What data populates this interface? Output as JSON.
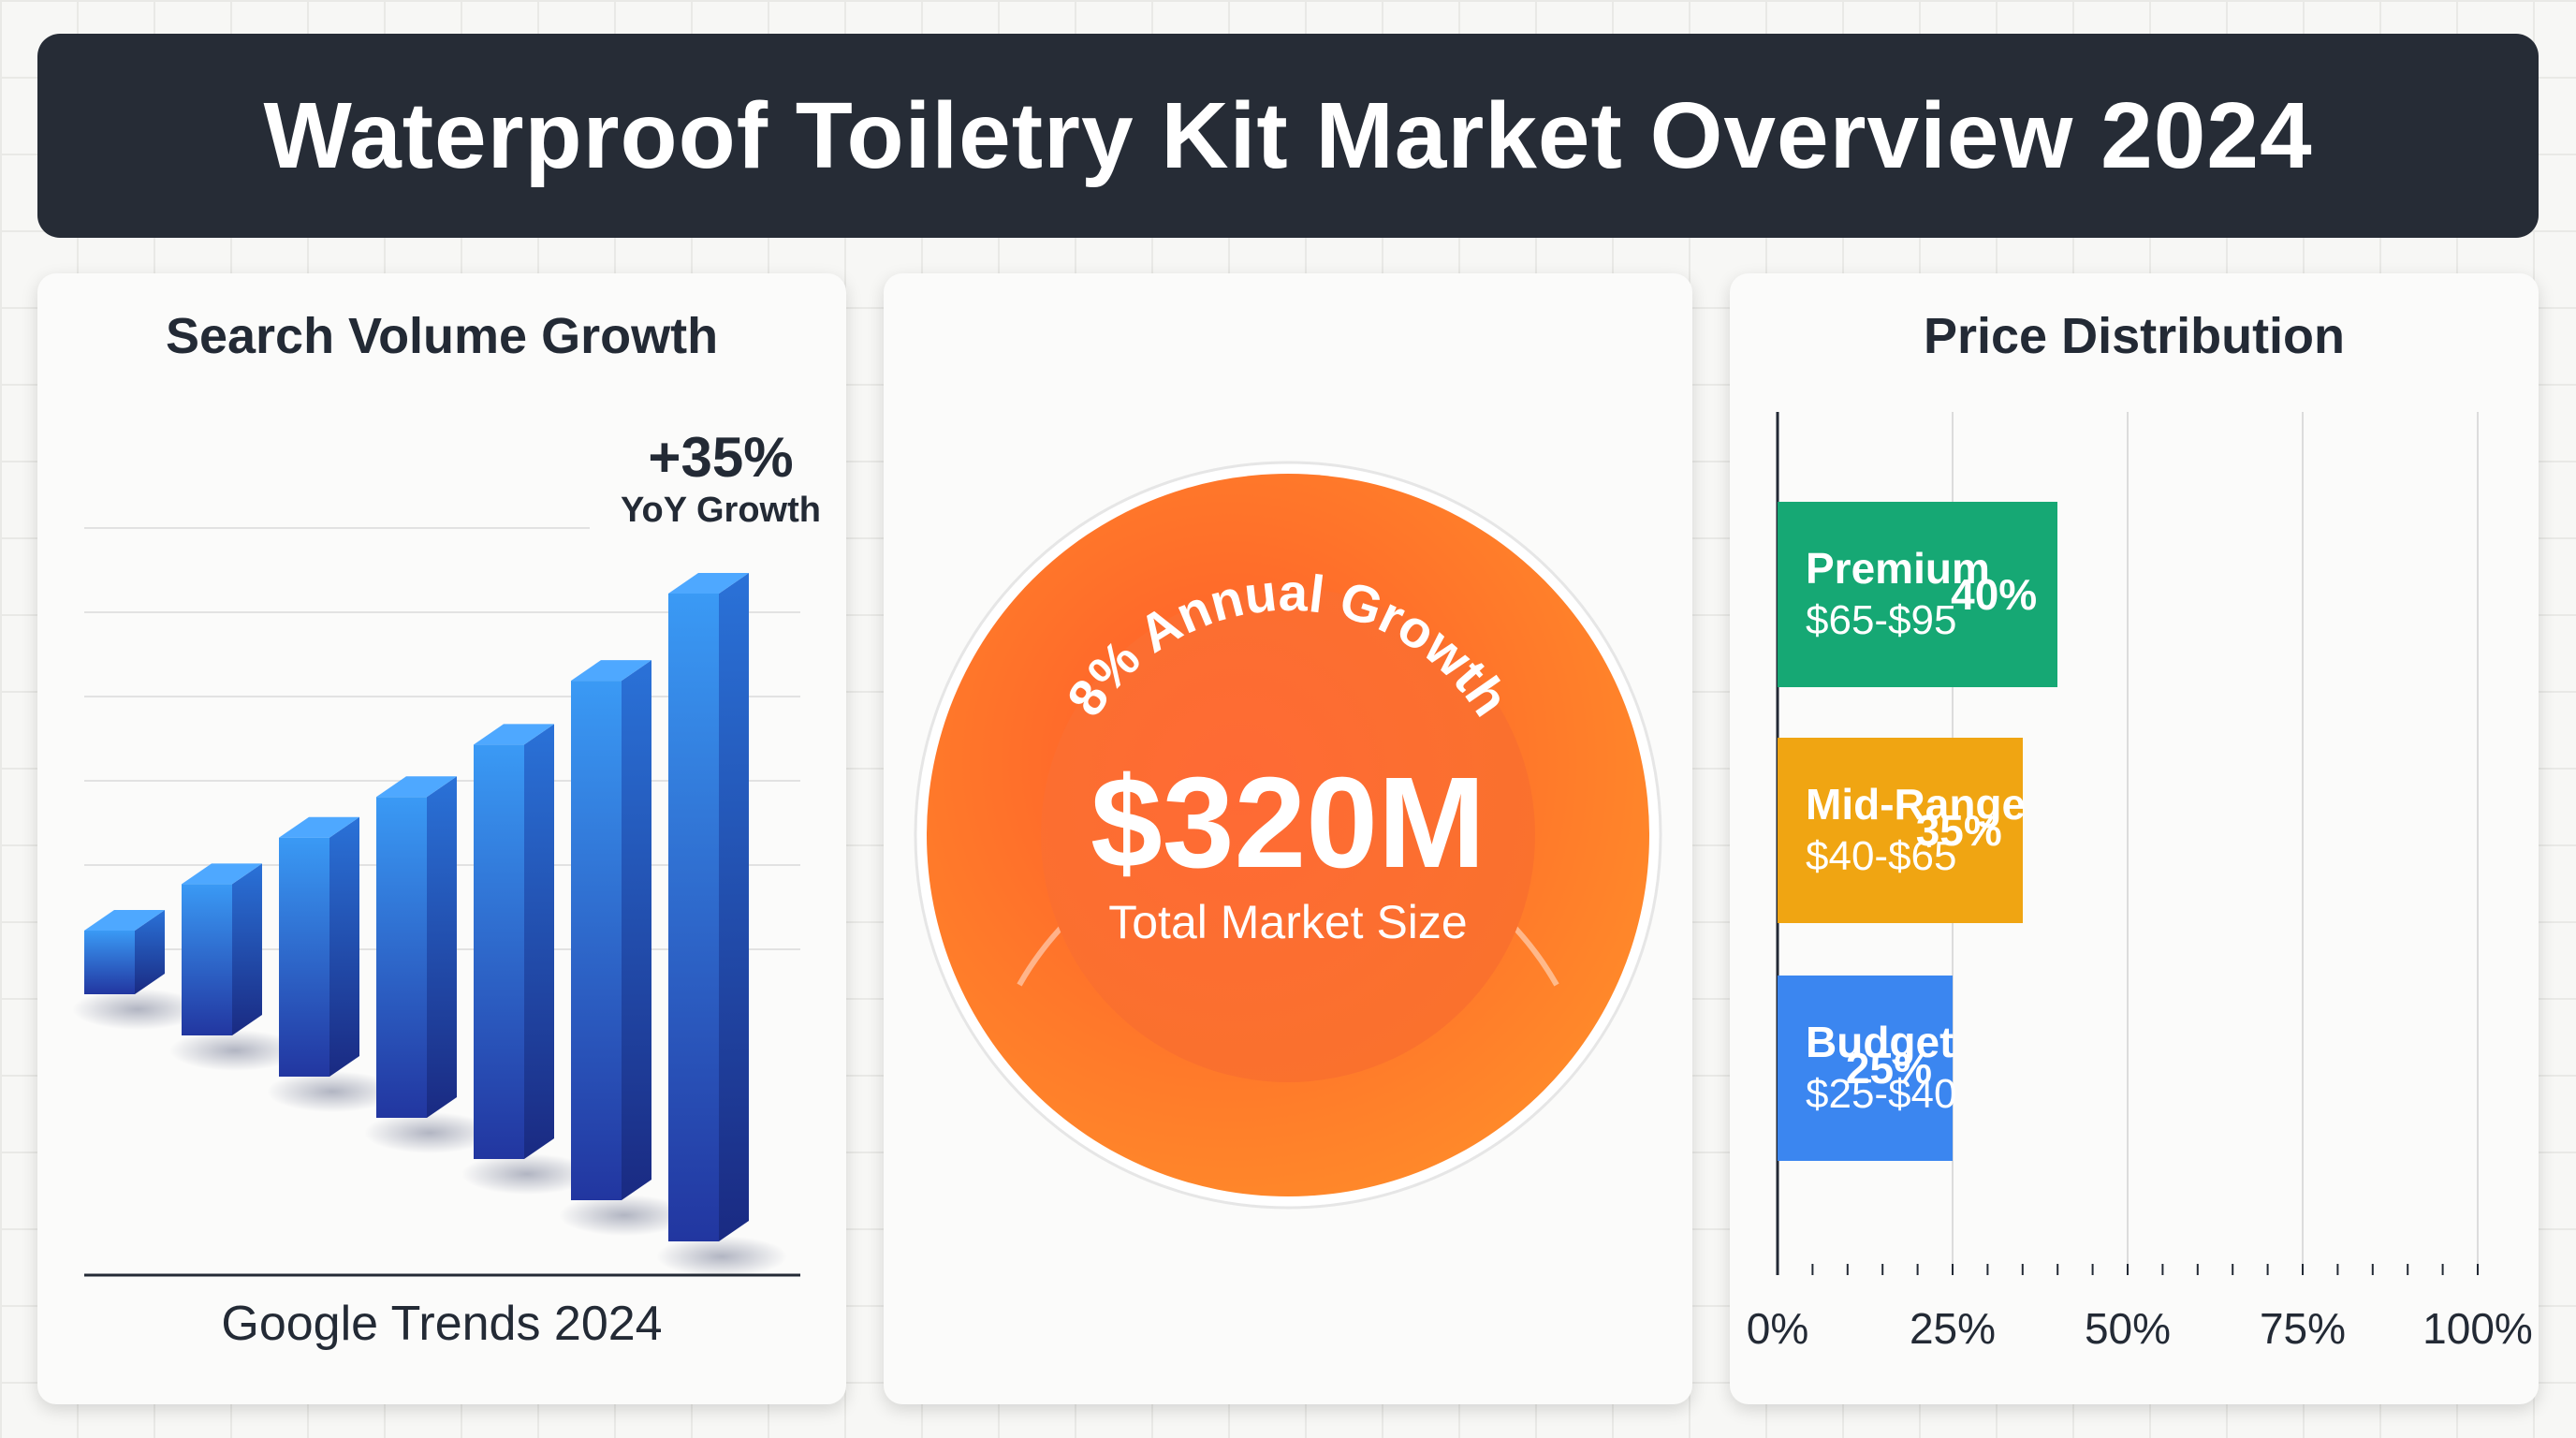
{
  "title": "Waterproof Toiletry Kit Market Overview 2024",
  "colors": {
    "title_bg": "#262c36",
    "bar_blue_light": "#3a9af5",
    "bar_blue_dark": "#2236a0",
    "badge_orange": "#ff6a2b",
    "premium": "#16a874",
    "mid_range": "#f0a512",
    "budget": "#3b86f0"
  },
  "search_panel": {
    "title": "Search Volume Growth",
    "growth_value": "+35%",
    "growth_label": "YoY Growth",
    "caption": "Google Trends 2024"
  },
  "market_panel": {
    "arc_text": "8% Annual Growth",
    "value": "$320M",
    "label": "Total Market Size"
  },
  "price_panel": {
    "title": "Price Distribution"
  },
  "chart_data": [
    {
      "type": "bar",
      "title": "Search Volume Growth",
      "xlabel": "Google Trends 2024",
      "ylabel": "",
      "values": [
        1,
        1.8,
        2.6,
        3.3,
        4.2,
        5.3,
        6.8
      ],
      "annotation": "+35% YoY Growth",
      "grid": true
    },
    {
      "type": "bar",
      "orientation": "horizontal",
      "title": "Price Distribution",
      "categories": [
        "Premium",
        "Mid-Range",
        "Budget"
      ],
      "ranges": [
        "$65-$95",
        "$40-$65",
        "$25-$40"
      ],
      "values": [
        40,
        35,
        25
      ],
      "value_labels": [
        "40%",
        "35%",
        "25%"
      ],
      "xlim": [
        0,
        100
      ],
      "ticks": [
        "0%",
        "25%",
        "50%",
        "75%",
        "100%"
      ],
      "grid": true
    }
  ]
}
